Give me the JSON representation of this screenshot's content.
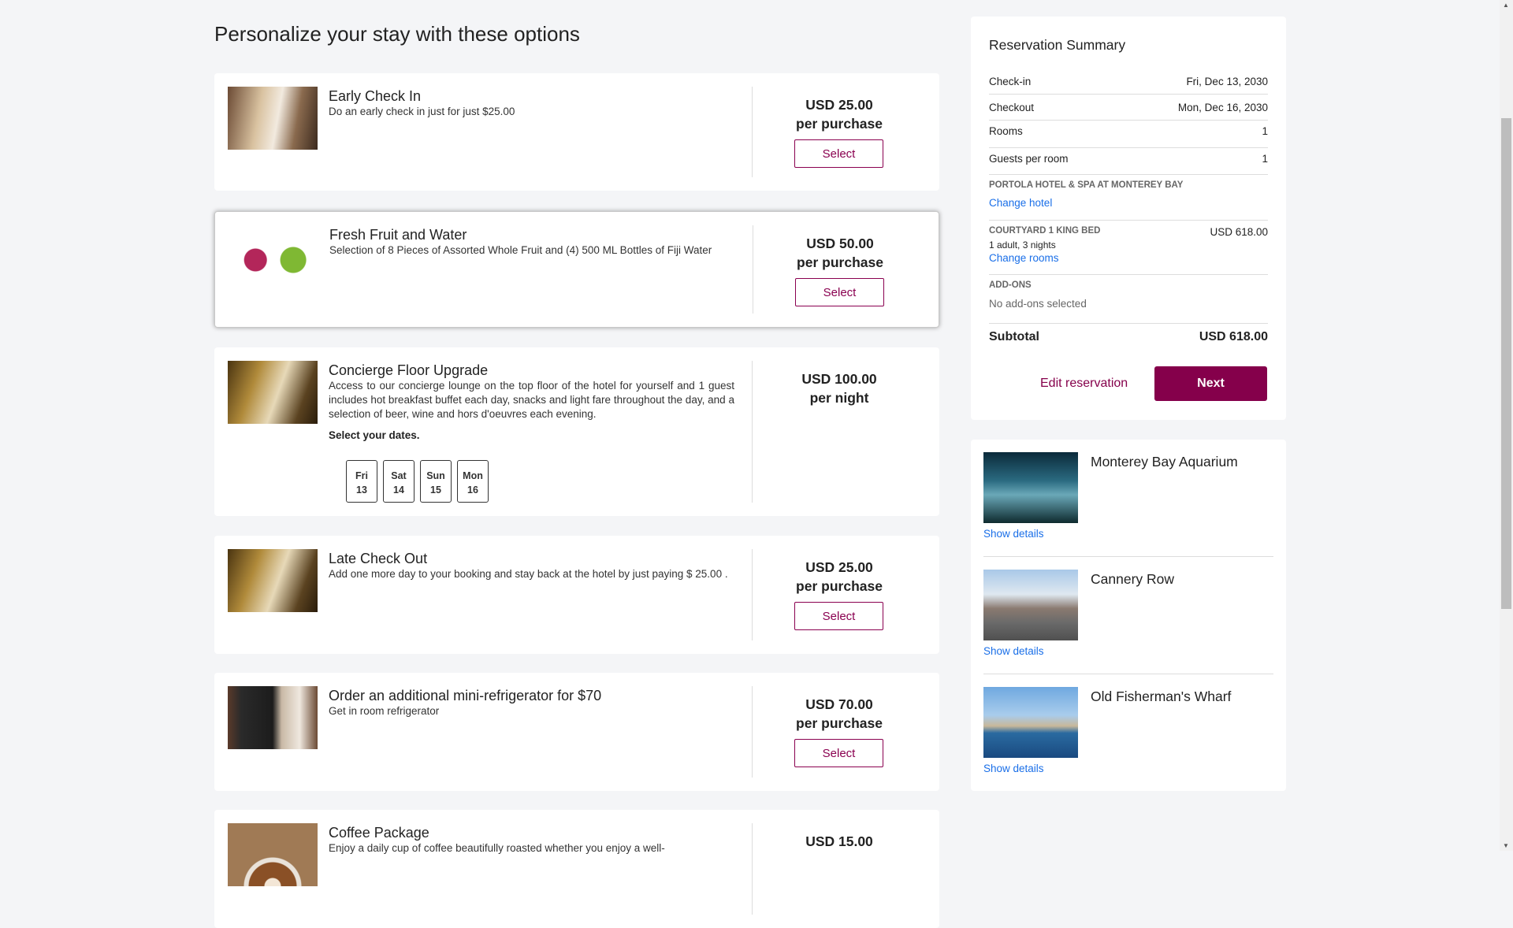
{
  "page_title": "Personalize your stay with these options",
  "addons": [
    {
      "title": "Early Check In",
      "description": "Do an early check in just for just $25.00",
      "price": "USD 25.00",
      "unit": "per purchase",
      "button": "Select",
      "image": "hotel-room-door"
    },
    {
      "title": "Fresh Fruit and Water",
      "description": "Selection of 8 Pieces of Assorted Whole Fruit and (4) 500 ML Bottles of Fiji Water",
      "price": "USD 50.00",
      "unit": "per purchase",
      "button": "Select",
      "image": "fruit-drinks"
    },
    {
      "title": "Concierge Floor Upgrade",
      "description": "Access to our concierge lounge on the top floor of the hotel for yourself and 1 guest includes hot breakfast buffet each day, snacks and light fare throughout the day, and a selection of beer, wine and hors d'oeuvres each evening.",
      "select_dates_label": "Select your dates.",
      "dates": [
        {
          "day": "Fri",
          "num": "13"
        },
        {
          "day": "Sat",
          "num": "14"
        },
        {
          "day": "Sun",
          "num": "15"
        },
        {
          "day": "Mon",
          "num": "16"
        }
      ],
      "price": "USD 100.00",
      "unit": "per night",
      "image": "reception-desk"
    },
    {
      "title": "Late Check Out",
      "description": "Add one more day to your booking and stay back at the hotel by just paying $ 25.00 .",
      "price": "USD 25.00",
      "unit": "per purchase",
      "button": "Select",
      "image": "reception-desk"
    },
    {
      "title": "Order an additional mini-refrigerator for $70",
      "description": "Get in room refrigerator",
      "price": "USD 70.00",
      "unit": "per purchase",
      "button": "Select",
      "image": "mini-fridge"
    },
    {
      "title": "Coffee Package",
      "description": "Enjoy a daily cup of coffee beautifully roasted whether you enjoy a well-",
      "price": "USD 15.00",
      "image": "latte"
    }
  ],
  "summary": {
    "title": "Reservation Summary",
    "checkin_label": "Check-in",
    "checkin": "Fri, Dec 13, 2030",
    "checkout_label": "Checkout",
    "checkout": "Mon, Dec 16, 2030",
    "rooms_label": "Rooms",
    "rooms": "1",
    "guests_label": "Guests per room",
    "guests": "1",
    "hotel": "PORTOLA HOTEL & SPA AT MONTEREY BAY",
    "change_hotel": "Change hotel",
    "room_type": "COURTYARD 1 KING BED",
    "room_price": "USD 618.00",
    "room_detail": "1 adult, 3 nights",
    "change_rooms": "Change rooms",
    "addons_label": "ADD-ONS",
    "addons_value": "No add-ons selected",
    "subtotal_label": "Subtotal",
    "subtotal": "USD 618.00",
    "edit": "Edit reservation",
    "next": "Next"
  },
  "attractions": [
    {
      "name": "Monterey Bay Aquarium",
      "link": "Show details"
    },
    {
      "name": "Cannery Row",
      "link": "Show details"
    },
    {
      "name": "Old Fisherman's Wharf",
      "link": "Show details"
    }
  ],
  "colors": {
    "brand": "#85004b",
    "link": "#1a6fe8",
    "background": "#f4f5f7"
  }
}
